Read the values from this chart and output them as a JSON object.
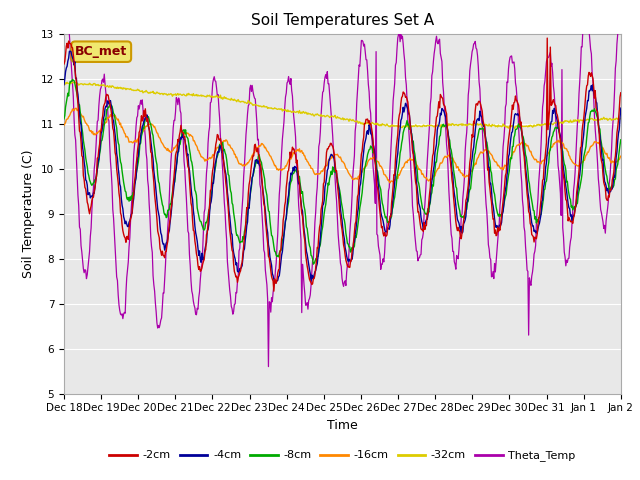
{
  "title": "Soil Temperatures Set A",
  "xlabel": "Time",
  "ylabel": "Soil Temperature (C)",
  "ylim": [
    5.0,
    13.0
  ],
  "yticks": [
    5.0,
    6.0,
    7.0,
    8.0,
    9.0,
    10.0,
    11.0,
    12.0,
    13.0
  ],
  "xtick_labels": [
    "Dec 18",
    "Dec 19",
    "Dec 20",
    "Dec 21",
    "Dec 22",
    "Dec 23",
    "Dec 24",
    "Dec 25",
    "Dec 26",
    "Dec 27",
    "Dec 28",
    "Dec 29",
    "Dec 30",
    "Dec 31",
    "Jan 1",
    "Jan 2"
  ],
  "colors": {
    "-2cm": "#cc0000",
    "-4cm": "#000099",
    "-8cm": "#00aa00",
    "-16cm": "#ff8800",
    "-32cm": "#ddcc00",
    "Theta_Temp": "#aa00aa"
  },
  "annotation_text": "BC_met",
  "plot_bg_color": "#e8e8e8",
  "grid_color": "#ffffff",
  "title_fontsize": 11,
  "label_fontsize": 9,
  "tick_fontsize": 7.5,
  "legend_fontsize": 8
}
